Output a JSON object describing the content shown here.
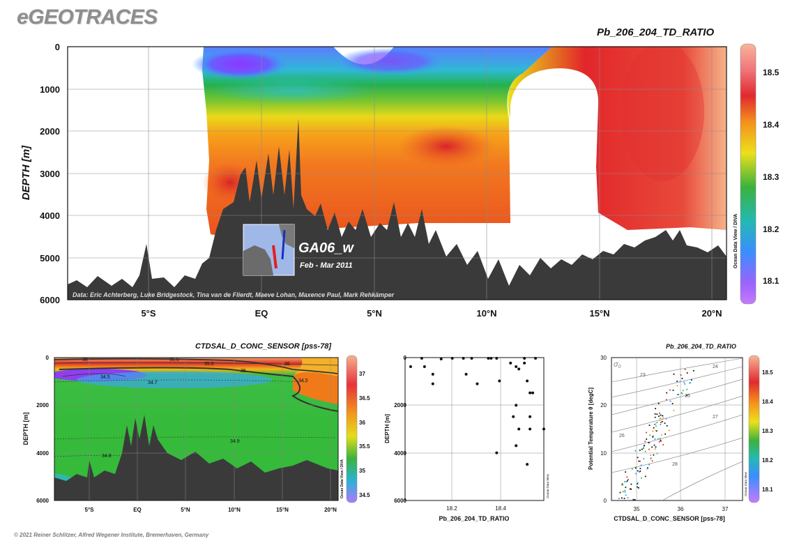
{
  "brand": "eGEOTRACES",
  "copyright": "© 2021 Reiner Schlitzer, Alfred Wegener Institute, Bremerhaven, Germany",
  "colors": {
    "land": "#3a3a3a",
    "grid": "#8a8a8a"
  },
  "main_chart": {
    "title": "Pb_206_204_TD_RATIO",
    "ylabel": "DEPTH [m]",
    "yticks": [
      "0",
      "1000",
      "2000",
      "3000",
      "4000",
      "5000",
      "6000"
    ],
    "xticks": [
      "5°S",
      "EQ",
      "5°N",
      "10°N",
      "15°N",
      "20°N"
    ],
    "credits": "Data: Eric Achterberg, Luke Bridgestock, Tina van de Flierdt, Maeve Lohan, Maxence Paul, Mark Rehkämper",
    "section_name": "GA06_w",
    "section_date": "Feb - Mar 2011",
    "colorbar_ticks": [
      "18.5",
      "18.4",
      "18.3",
      "18.2",
      "18.1"
    ],
    "watermark": "Ocean Data View / DIVA"
  },
  "sal_chart": {
    "title": "CTDSAL_D_CONC_SENSOR [pss-78]",
    "ylabel": "DEPTH [m]",
    "yticks": [
      "0",
      "2000",
      "4000",
      "6000"
    ],
    "xticks": [
      "5°S",
      "EQ",
      "5°N",
      "10°N",
      "15°N",
      "20°N"
    ],
    "contour_labels": [
      "36",
      "35.5",
      "35.5",
      "36",
      "35",
      "34.5",
      "34.7",
      "34.9",
      "34.8",
      "34.5"
    ],
    "colorbar_ticks": [
      "37",
      "36.5",
      "36",
      "35.5",
      "35",
      "34.5"
    ],
    "watermark": "Ocean Data View / DIVA"
  },
  "profile_chart": {
    "type": "scatter",
    "xlabel": "Pb_206_204_TD_RATIO",
    "ylabel": "DEPTH [m]",
    "xticks": [
      "18.2",
      "18.4"
    ],
    "yticks": [
      "0",
      "2000",
      "4000",
      "6000"
    ],
    "xlim": [
      18.05,
      18.55
    ],
    "ylim": [
      0,
      6000
    ],
    "x": [
      18.07,
      18.11,
      18.12,
      18.15,
      18.15,
      18.18,
      18.22,
      18.26,
      18.27,
      18.29,
      18.31,
      18.35,
      18.36,
      18.38,
      18.39,
      18.43,
      18.45,
      18.46,
      18.48,
      18.48,
      18.49,
      18.5,
      18.5,
      18.51,
      18.52,
      18.44,
      18.45,
      18.5,
      18.46,
      18.55,
      18.49,
      18.45,
      18.38
    ],
    "y": [
      380,
      30,
      380,
      700,
      1100,
      60,
      30,
      30,
      700,
      30,
      1100,
      30,
      30,
      30,
      980,
      230,
      380,
      480,
      30,
      230,
      980,
      1480,
      2480,
      1480,
      30,
      2480,
      2000,
      3000,
      3000,
      3000,
      4480,
      3700,
      4000
    ],
    "watermark": "Ocean Data View"
  },
  "ts_chart": {
    "title": "Pb_206_204_TD_RATIO",
    "xlabel": "CTDSAL_D_CONC_SENSOR [pss-78]",
    "ylabel": "Potential Temperature θ [degC]",
    "xticks": [
      "35",
      "36",
      "37"
    ],
    "yticks": [
      "0",
      "10",
      "20",
      "30"
    ],
    "sigma_symbol": "σ",
    "sigma_sub": "0",
    "density_labels": [
      "23",
      "24",
      "25",
      "26",
      "27",
      "28"
    ],
    "colorbar_ticks": [
      "18.5",
      "18.4",
      "18.3",
      "18.2",
      "18.1"
    ],
    "watermark": "Ocean Data View"
  },
  "chart_data": [
    {
      "type": "heatmap",
      "title": "Pb_206_204_TD_RATIO",
      "ylabel": "DEPTH [m]",
      "ylim": [
        6000,
        0
      ],
      "x_range": "7°S – 20.5°N",
      "colorbar_range": [
        18.05,
        18.55
      ],
      "y_reversed": true
    },
    {
      "type": "heatmap",
      "title": "CTDSAL_D_CONC_SENSOR [pss-78]",
      "ylabel": "DEPTH [m]",
      "ylim": [
        6000,
        0
      ],
      "colorbar_range": [
        34.4,
        37.2
      ]
    },
    {
      "type": "scatter",
      "xlabel": "Pb_206_204_TD_RATIO",
      "ylabel": "DEPTH [m]",
      "xlim": [
        18.05,
        18.55
      ],
      "ylim": [
        6000,
        0
      ]
    },
    {
      "type": "scatter",
      "title": "Pb_206_204_TD_RATIO",
      "xlabel": "CTDSAL_D_CONC_SENSOR [pss-78]",
      "ylabel": "Potential Temperature θ [degC]",
      "xlim": [
        34.5,
        37.5
      ],
      "ylim": [
        0,
        30
      ]
    }
  ]
}
